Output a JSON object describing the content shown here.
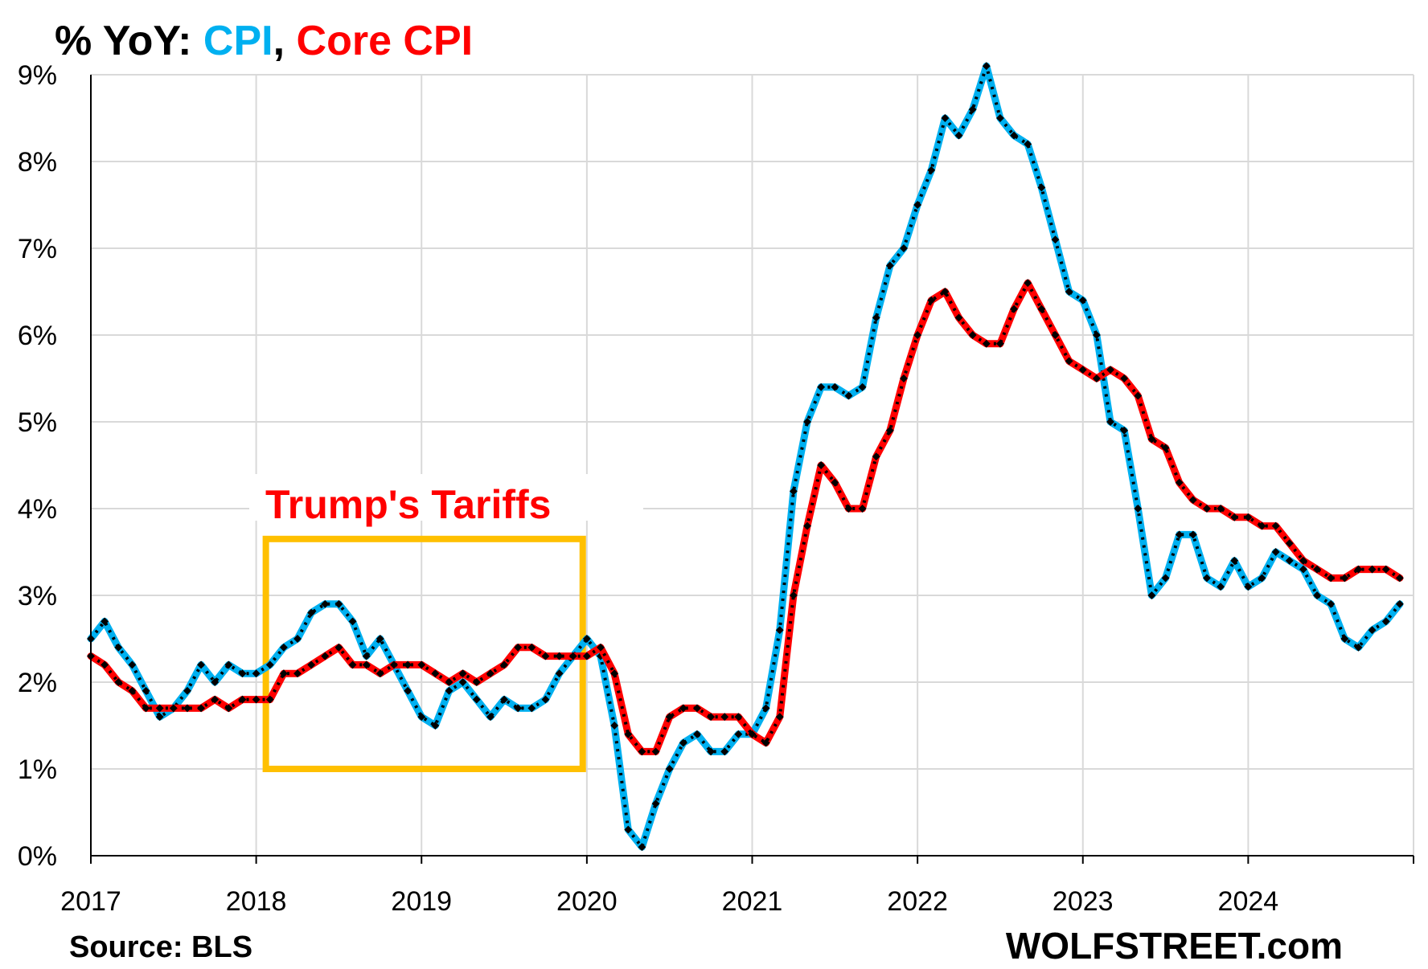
{
  "chart_data": {
    "type": "line",
    "title": {
      "prefix": "% YoY: ",
      "series_a": "CPI",
      "separator": ", ",
      "series_b": "Core CPI"
    },
    "xlabel": "",
    "ylabel": "",
    "xlim": [
      2017,
      2025
    ],
    "ylim": [
      0,
      9
    ],
    "x_ticks": [
      "2017",
      "2018",
      "2019",
      "2020",
      "2021",
      "2022",
      "2023",
      "2024"
    ],
    "y_ticks": [
      "0%",
      "1%",
      "2%",
      "3%",
      "4%",
      "5%",
      "6%",
      "7%",
      "8%",
      "9%"
    ],
    "grid": true,
    "legend": "title",
    "source": "Source: BLS",
    "brand": "WOLFSTREET.com",
    "annotation": {
      "label": "Trump's Tariffs",
      "x_start": "2018-01",
      "x_end": "2019-12",
      "y_range": [
        1.0,
        3.65
      ],
      "color": "#FFC000"
    },
    "colors": {
      "CPI": "#00B0F0",
      "Core CPI": "#FF0000",
      "markers": "#000000",
      "grid": "#D9D9D9"
    },
    "start_month": "2017-01",
    "series": [
      {
        "name": "CPI",
        "values": [
          2.5,
          2.7,
          2.4,
          2.2,
          1.9,
          1.6,
          1.7,
          1.9,
          2.2,
          2.0,
          2.2,
          2.1,
          2.1,
          2.2,
          2.4,
          2.5,
          2.8,
          2.9,
          2.9,
          2.7,
          2.3,
          2.5,
          2.2,
          1.9,
          1.6,
          1.5,
          1.9,
          2.0,
          1.8,
          1.6,
          1.8,
          1.7,
          1.7,
          1.8,
          2.1,
          2.3,
          2.5,
          2.3,
          1.5,
          0.3,
          0.1,
          0.6,
          1.0,
          1.3,
          1.4,
          1.2,
          1.2,
          1.4,
          1.4,
          1.7,
          2.6,
          4.2,
          5.0,
          5.4,
          5.4,
          5.3,
          5.4,
          6.2,
          6.8,
          7.0,
          7.5,
          7.9,
          8.5,
          8.3,
          8.6,
          9.1,
          8.5,
          8.3,
          8.2,
          7.7,
          7.1,
          6.5,
          6.4,
          6.0,
          5.0,
          4.9,
          4.0,
          3.0,
          3.2,
          3.7,
          3.7,
          3.2,
          3.1,
          3.4,
          3.1,
          3.2,
          3.5,
          3.4,
          3.3,
          3.0,
          2.9,
          2.5,
          2.4,
          2.6,
          2.7,
          2.9
        ]
      },
      {
        "name": "Core CPI",
        "values": [
          2.3,
          2.2,
          2.0,
          1.9,
          1.7,
          1.7,
          1.7,
          1.7,
          1.7,
          1.8,
          1.7,
          1.8,
          1.8,
          1.8,
          2.1,
          2.1,
          2.2,
          2.3,
          2.4,
          2.2,
          2.2,
          2.1,
          2.2,
          2.2,
          2.2,
          2.1,
          2.0,
          2.1,
          2.0,
          2.1,
          2.2,
          2.4,
          2.4,
          2.3,
          2.3,
          2.3,
          2.3,
          2.4,
          2.1,
          1.4,
          1.2,
          1.2,
          1.6,
          1.7,
          1.7,
          1.6,
          1.6,
          1.6,
          1.4,
          1.3,
          1.6,
          3.0,
          3.8,
          4.5,
          4.3,
          4.0,
          4.0,
          4.6,
          4.9,
          5.5,
          6.0,
          6.4,
          6.5,
          6.2,
          6.0,
          5.9,
          5.9,
          6.3,
          6.6,
          6.3,
          6.0,
          5.7,
          5.6,
          5.5,
          5.6,
          5.5,
          5.3,
          4.8,
          4.7,
          4.3,
          4.1,
          4.0,
          4.0,
          3.9,
          3.9,
          3.8,
          3.8,
          3.6,
          3.4,
          3.3,
          3.2,
          3.2,
          3.3,
          3.3,
          3.3,
          3.2
        ]
      }
    ]
  }
}
